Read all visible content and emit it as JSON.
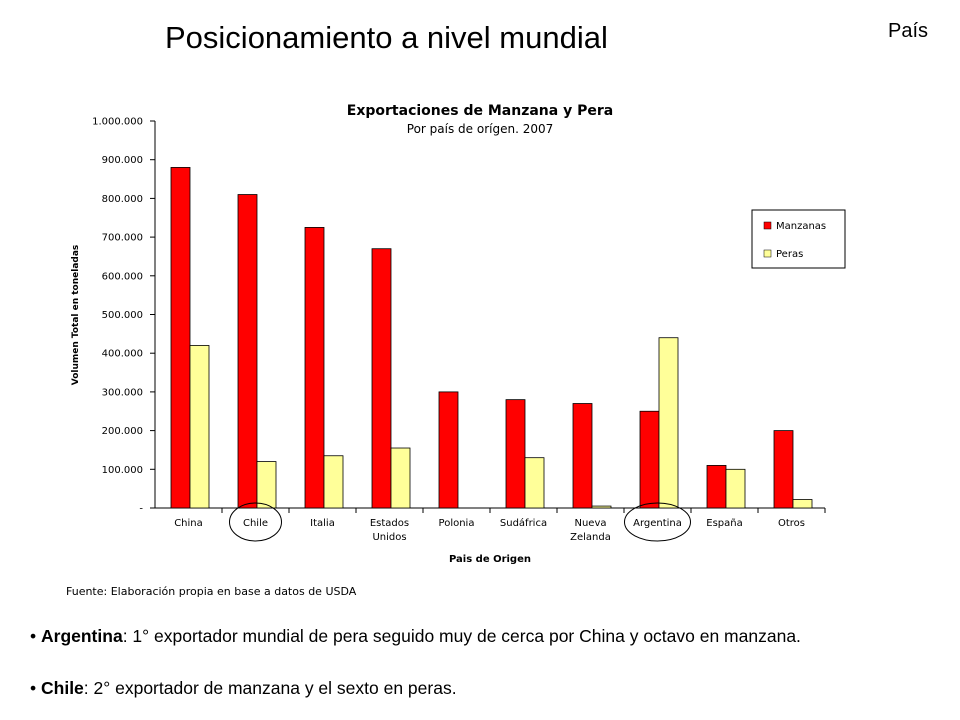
{
  "slide": {
    "title": "Posicionamiento a nivel mundial",
    "section_label": "País"
  },
  "chart_data": {
    "type": "bar",
    "title": "Exportaciones de Manzana y Pera",
    "subtitle": "Por país de orígen. 2007",
    "xlabel": "Pais de Origen",
    "ylabel": "Volumen Total en toneladas",
    "ylim": [
      0,
      1000000
    ],
    "yticks": [
      "-",
      "100.000",
      "200.000",
      "300.000",
      "400.000",
      "500.000",
      "600.000",
      "700.000",
      "800.000",
      "900.000",
      "1.000.000"
    ],
    "categories": [
      [
        "China"
      ],
      [
        "Chile"
      ],
      [
        "Italia"
      ],
      [
        "Estados",
        "Unidos"
      ],
      [
        "Polonia"
      ],
      [
        "Sudáfrica"
      ],
      [
        "Nueva",
        "Zelanda"
      ],
      [
        "Argentina"
      ],
      [
        "España"
      ],
      [
        "Otros"
      ]
    ],
    "series": [
      {
        "name": "Manzanas",
        "color": "#ff0000",
        "values": [
          880000,
          810000,
          725000,
          670000,
          300000,
          280000,
          270000,
          250000,
          110000,
          200000
        ]
      },
      {
        "name": "Peras",
        "color": "#ffff99",
        "values": [
          420000,
          120000,
          135000,
          155000,
          0,
          130000,
          5000,
          440000,
          100000,
          22000
        ]
      }
    ],
    "highlighted_categories": [
      "Chile",
      "Argentina"
    ],
    "legend": "right",
    "grid": false,
    "source": "Fuente: Elaboración propia en base a datos de USDA"
  },
  "bullets": [
    {
      "bold": "Argentina",
      "text": ": 1° exportador mundial de pera seguido muy de cerca por China y octavo en manzana."
    },
    {
      "bold": "Chile",
      "text": ": 2° exportador de manzana y el sexto en peras."
    }
  ]
}
